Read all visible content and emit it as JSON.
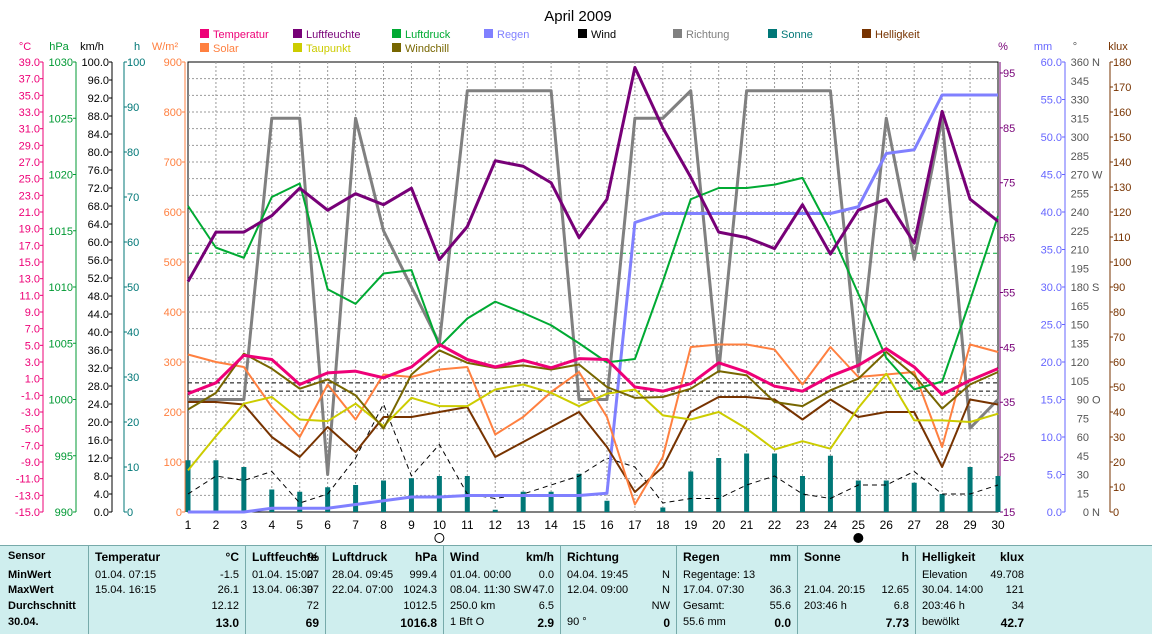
{
  "chart_data": {
    "type": "line",
    "title": "April 2009",
    "x": [
      1,
      2,
      3,
      4,
      5,
      6,
      7,
      8,
      9,
      10,
      11,
      12,
      13,
      14,
      15,
      16,
      17,
      18,
      19,
      20,
      21,
      22,
      23,
      24,
      25,
      26,
      27,
      28,
      29,
      30
    ],
    "xlim": [
      1,
      30
    ],
    "legend": [
      {
        "name": "Temperatur",
        "color": "#ee0077"
      },
      {
        "name": "Luftfeuchte",
        "color": "#770077"
      },
      {
        "name": "Luftdruck",
        "color": "#00aa33"
      },
      {
        "name": "Regen",
        "color": "#8080ff"
      },
      {
        "name": "Wind",
        "color": "#000000"
      },
      {
        "name": "Richtung",
        "color": "#808080"
      },
      {
        "name": "Sonne",
        "color": "#007777"
      },
      {
        "name": "Helligkeit",
        "color": "#773300"
      },
      {
        "name": "Solar",
        "color": "#ff8040"
      },
      {
        "name": "Taupunkt",
        "color": "#cccc00"
      },
      {
        "name": "Windchill",
        "color": "#776600"
      }
    ],
    "axes": {
      "temp": {
        "unit": "°C",
        "min": -15,
        "max": 39,
        "step": 2,
        "color": "#ee0077"
      },
      "pressure": {
        "unit": "hPa",
        "min": 990,
        "max": 1030,
        "step": 5,
        "color": "#009933"
      },
      "wind": {
        "unit": "km/h",
        "min": 0,
        "max": 100,
        "step": 4,
        "color": "#000000"
      },
      "hours": {
        "unit": "h",
        "min": 0,
        "max": 100,
        "step": 10,
        "color": "#007777"
      },
      "solar": {
        "unit": "W/m²",
        "min": 0,
        "max": 900,
        "step": 100,
        "color": "#ff8040"
      },
      "humidity": {
        "unit": "%",
        "min": 15,
        "max": 97,
        "ticks": [
          15,
          25,
          35,
          45,
          55,
          65,
          75,
          85,
          95
        ],
        "color": "#770077"
      },
      "rain": {
        "unit": "mm",
        "min": 0,
        "max": 60,
        "step": 5,
        "color": "#6666ff"
      },
      "direction": {
        "unit": "°",
        "min": 0,
        "max": 360,
        "step": 15,
        "color": "#555555",
        "compass": {
          "0": "N",
          "90": "O",
          "180": "S",
          "270": "W",
          "360": "N"
        }
      },
      "lux": {
        "unit": "klux",
        "min": 0,
        "max": 180,
        "step": 10,
        "color": "#773300"
      }
    },
    "series": [
      {
        "name": "Temperatur",
        "axis": "temp",
        "color": "#ee0077",
        "width": 3,
        "values": [
          -0.8,
          0.5,
          3.8,
          3.3,
          0.3,
          1.7,
          1.9,
          1.1,
          2.4,
          5.1,
          3.3,
          2.4,
          3.2,
          2.3,
          3.4,
          3.3,
          0.0,
          -0.5,
          0.4,
          2.9,
          1.8,
          0.1,
          -0.5,
          1.3,
          2.6,
          4.6,
          2.4,
          -0.9,
          0.8,
          2.2
        ]
      },
      {
        "name": "Taupunkt",
        "axis": "temp",
        "color": "#cccc00",
        "width": 2,
        "values": [
          -10.0,
          -5.9,
          -2.0,
          -1.2,
          -3.9,
          -4.1,
          -2.0,
          -4.7,
          -1.3,
          -2.3,
          -2.3,
          -0.3,
          0.3,
          -0.7,
          -2.3,
          -0.8,
          -0.3,
          -3.4,
          -3.9,
          -3.0,
          -5.0,
          -7.5,
          -6.5,
          -7.4,
          -2.5,
          1.6,
          -4.0,
          -4.0,
          -4.2,
          -3.2
        ]
      },
      {
        "name": "Windchill",
        "axis": "temp",
        "color": "#776600",
        "width": 2,
        "values": [
          -2.7,
          -0.7,
          4.0,
          2.2,
          -0.2,
          0.9,
          -1.0,
          -5.0,
          1.5,
          4.4,
          2.9,
          2.3,
          2.6,
          2.1,
          2.7,
          0.0,
          -1.3,
          -1.2,
          -0.2,
          1.9,
          1.4,
          -1.8,
          -2.3,
          -0.4,
          1.0,
          4.2,
          1.4,
          -2.6,
          0.3,
          1.8
        ]
      },
      {
        "name": "Luftdruck",
        "axis": "pressure",
        "color": "#00aa33",
        "width": 2,
        "values": [
          1017.2,
          1013.5,
          1012.6,
          1018.0,
          1019.2,
          1009.8,
          1008.5,
          1011.2,
          1011.5,
          1004.7,
          1007.2,
          1008.7,
          1007.7,
          1006.6,
          1005.0,
          1003.3,
          1003.6,
          1010.5,
          1017.8,
          1018.8,
          1018.8,
          1019.1,
          1019.7,
          1015.0,
          1009.4,
          1003.7,
          1000.9,
          1001.6,
          1008.8,
          1016.3
        ]
      },
      {
        "name": "Luftfeuchte",
        "axis": "humidity",
        "color": "#770077",
        "width": 3,
        "values": [
          57,
          66,
          66,
          69,
          74,
          70,
          73,
          71,
          74,
          61,
          67,
          79,
          78,
          75,
          65,
          72,
          96,
          85,
          76,
          66,
          65,
          63,
          71,
          62,
          70,
          72,
          64,
          88,
          72,
          68
        ]
      },
      {
        "name": "Regen",
        "axis": "rain",
        "color": "#8080ff",
        "width": 3,
        "values": [
          0,
          0,
          0,
          0.5,
          0.5,
          0.5,
          1.0,
          1.5,
          2.0,
          2.0,
          2.2,
          2.2,
          2.2,
          2.2,
          2.2,
          2.5,
          38.6,
          39.8,
          39.8,
          39.8,
          39.8,
          39.8,
          39.8,
          39.8,
          40.7,
          47.8,
          48.3,
          55.6,
          55.6,
          55.6
        ]
      },
      {
        "name": "Richtung",
        "axis": "direction",
        "color": "#808080",
        "width": 3,
        "values": [
          90,
          90,
          90,
          315,
          315,
          30,
          315,
          225,
          180,
          135,
          337,
          337,
          337,
          337,
          90,
          90,
          315,
          315,
          337,
          112,
          337,
          337,
          337,
          337,
          112,
          315,
          202,
          315,
          67,
          90
        ]
      },
      {
        "name": "Solar",
        "axis": "solar",
        "color": "#ff8040",
        "width": 2,
        "values": [
          315,
          300,
          290,
          210,
          150,
          255,
          185,
          275,
          270,
          285,
          290,
          155,
          190,
          240,
          280,
          190,
          15,
          110,
          330,
          335,
          335,
          325,
          255,
          330,
          270,
          275,
          280,
          130,
          335,
          320
        ]
      },
      {
        "name": "Helligkeit",
        "axis": "lux",
        "color": "#773300",
        "width": 2,
        "values": [
          44,
          44,
          43,
          30,
          22,
          34,
          24,
          38,
          38,
          40,
          42,
          22,
          28,
          34,
          40,
          26,
          8,
          18,
          40,
          46,
          46,
          45,
          37,
          45,
          38,
          40,
          40,
          18,
          45,
          43
        ]
      },
      {
        "name": "Wind",
        "axis": "wind",
        "color": "#000000",
        "width": 1,
        "dash": true,
        "values": [
          4,
          8,
          7,
          9,
          2,
          4,
          12,
          24,
          8,
          15,
          4,
          3,
          4,
          6,
          8,
          12,
          10,
          2,
          3,
          3,
          6,
          8,
          4,
          3,
          6,
          6,
          9,
          4,
          4,
          6
        ]
      }
    ],
    "bars": {
      "name": "Sonne",
      "axis": "hours",
      "color": "#007777",
      "values": [
        11.5,
        11.5,
        10.0,
        5.0,
        4.5,
        5.5,
        6.0,
        7.0,
        7.5,
        8.0,
        8.0,
        0.5,
        4.5,
        4.5,
        8.5,
        2.5,
        0.0,
        1.0,
        9.0,
        12.0,
        13.0,
        13.0,
        8.0,
        12.5,
        7.0,
        7.0,
        6.5,
        4.0,
        10.0,
        8.0
      ]
    },
    "reference_lines": [
      {
        "axis": "pressure",
        "value": 1013.0,
        "color": "#00aa33",
        "dash": true
      },
      {
        "axis": "temp",
        "value": -0.5,
        "color": "#000000",
        "dash": true
      },
      {
        "axis": "temp",
        "value": 0.5,
        "color": "#000000",
        "dash": true
      }
    ],
    "markers": [
      {
        "x": 10,
        "symbol": "full-moon"
      },
      {
        "x": 25,
        "symbol": "new-moon"
      }
    ]
  },
  "table": {
    "row_labels": [
      "Sensor",
      "MinWert",
      "MaxWert",
      "Durchschnitt",
      "30.04."
    ],
    "columns": [
      {
        "header": "Temperatur",
        "unit": "°C",
        "rows": [
          [
            "01.04.  07:15",
            "-1.5"
          ],
          [
            "15.04.  16:15",
            "26.1"
          ],
          [
            "",
            "12.12"
          ],
          [
            "",
            "13.0"
          ]
        ]
      },
      {
        "header": "Luftfeuchte",
        "unit": "%",
        "rows": [
          [
            "01.04.  15:00",
            "27"
          ],
          [
            "13.04.  06:30",
            "97"
          ],
          [
            "",
            "72"
          ],
          [
            "",
            "69"
          ]
        ]
      },
      {
        "header": "Luftdruck",
        "unit": "hPa",
        "rows": [
          [
            "28.04.  09:45",
            "999.4"
          ],
          [
            "22.04.  07:00",
            "1024.3"
          ],
          [
            "",
            "1012.5"
          ],
          [
            "",
            "1016.8"
          ]
        ]
      },
      {
        "header": "Wind",
        "unit": "km/h",
        "rows": [
          [
            "01.04.  00:00",
            "0.0"
          ],
          [
            "08.04.  11:30 SW",
            "47.0"
          ],
          [
            "250.0 km",
            "6.5"
          ],
          [
            "1 Bft O",
            "2.9"
          ]
        ]
      },
      {
        "header": "Richtung",
        "unit": "",
        "rows": [
          [
            "04.04.  19:45",
            "N"
          ],
          [
            "12.04.  09:00",
            "N"
          ],
          [
            "",
            "NW"
          ],
          [
            "90 °",
            "0"
          ]
        ]
      },
      {
        "header": "Regen",
        "unit": "mm",
        "rows": [
          [
            "Regentage: 13",
            ""
          ],
          [
            "17.04.  07:30",
            "36.3"
          ],
          [
            "Gesamt:",
            "55.6"
          ],
          [
            "55.6 mm",
            "0.0"
          ]
        ]
      },
      {
        "header": "Sonne",
        "unit": "h",
        "rows": [
          [
            "",
            ""
          ],
          [
            "21.04.  20:15",
            "12.65"
          ],
          [
            "203:46 h",
            "6.8"
          ],
          [
            "",
            "7.73"
          ]
        ]
      },
      {
        "header": "Helligkeit",
        "unit": "klux",
        "rows": [
          [
            "Elevation",
            "49.708"
          ],
          [
            "30.04.  14:00",
            "121"
          ],
          [
            "203:46 h",
            "34"
          ],
          [
            "bewölkt",
            "42.7"
          ]
        ]
      }
    ]
  }
}
